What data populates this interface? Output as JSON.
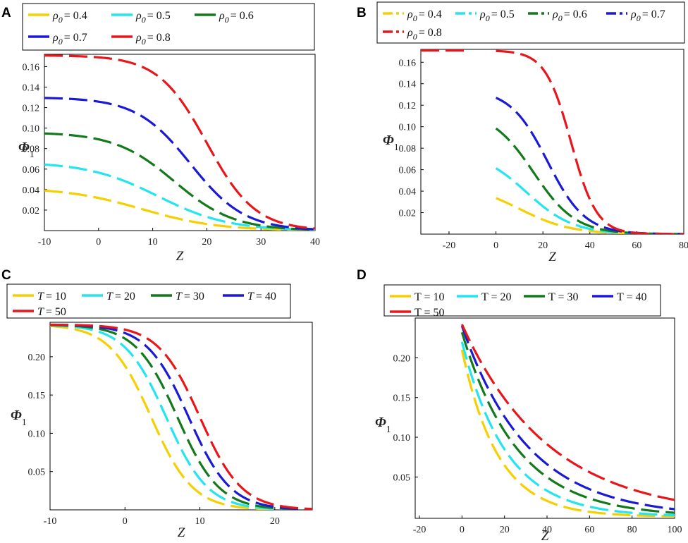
{
  "figure": {
    "panels": [
      {
        "letter": "A",
        "var_symbol": "ρ",
        "var_sub": "0",
        "value_format": "wide",
        "ylabel": "Φ",
        "ylabel_sub": "1",
        "xlabel": "Z"
      },
      {
        "letter": "B",
        "var_symbol": "ρ",
        "var_sub": "0",
        "value_format": "wide",
        "ylabel": "Φ",
        "ylabel_sub": "1",
        "xlabel": "Z"
      },
      {
        "letter": "C",
        "var_symbol": "T",
        "var_sub": "",
        "value_format": "italic",
        "ylabel": "Φ",
        "ylabel_sub": "1",
        "xlabel": "Z"
      },
      {
        "letter": "D",
        "var_symbol": "T",
        "var_sub": "",
        "value_format": "plain",
        "ylabel": "Φ",
        "ylabel_sub": "1",
        "xlabel": "Z"
      }
    ]
  },
  "colors": {
    "yellow": "#f5d000",
    "cyan": "#22e5f0",
    "green": "#137a1b",
    "blue": "#1a1ad6",
    "red": "#e8161a"
  },
  "chart_data": [
    {
      "id": "A",
      "type": "line",
      "title": "",
      "xlabel": "Z",
      "ylabel": "Φ1",
      "xlim": [
        -10,
        40
      ],
      "ylim": [
        0,
        0.172
      ],
      "xticks": [
        "-10",
        "0",
        "10",
        "20",
        "30",
        "40"
      ],
      "yticks": [
        "0.02",
        "0.04",
        "0.06",
        "0.08",
        "0.10",
        "0.12",
        "0.14",
        "0.16"
      ],
      "legend_placement": "top",
      "series": [
        {
          "name": "ρ0 = 0.4",
          "legend": "= 0.4",
          "color": "yellow",
          "amp": 0.042,
          "center": 8,
          "width": 7,
          "xstart": -10,
          "xend": 40
        },
        {
          "name": "ρ0 = 0.5",
          "legend": "= 0.5",
          "color": "cyan",
          "amp": 0.067,
          "center": 11,
          "width": 6.5,
          "xstart": -10,
          "xend": 40
        },
        {
          "name": "ρ0 = 0.6",
          "legend": "= 0.6",
          "color": "green",
          "amp": 0.096,
          "center": 14,
          "width": 5.5,
          "xstart": -10,
          "xend": 40
        },
        {
          "name": "ρ0 = 0.7",
          "legend": "=  0.7",
          "color": "blue",
          "amp": 0.13,
          "center": 17,
          "width": 5,
          "xstart": -10,
          "xend": 40
        },
        {
          "name": "ρ0 = 0.8",
          "legend": "= 0.8",
          "color": "red",
          "amp": 0.171,
          "center": 20,
          "width": 4.5,
          "xstart": -10,
          "xend": 40
        }
      ]
    },
    {
      "id": "B",
      "type": "line",
      "title": "",
      "xlabel": "Z",
      "ylabel": "Φ1",
      "xlim": [
        -32,
        80
      ],
      "ylim": [
        0,
        0.172
      ],
      "xticks": [
        "-20",
        "0",
        "20",
        "40",
        "60",
        "80"
      ],
      "yticks": [
        "0.02",
        "0.04",
        "0.06",
        "0.08",
        "0.10",
        "0.12",
        "0.14",
        "0.16"
      ],
      "legend_placement": "top",
      "series": [
        {
          "name": "ρ0 = 0.4",
          "legend": "= 0.4",
          "color": "yellow",
          "amp": 0.047,
          "center": 10,
          "width": 11,
          "xstart": 0,
          "xend": 80
        },
        {
          "name": "ρ0 = 0.5",
          "legend": "= 0.5",
          "color": "cyan",
          "amp": 0.078,
          "center": 13,
          "width": 10,
          "xstart": 0,
          "xend": 80
        },
        {
          "name": "ρ0 = 0.6",
          "legend": "= 0.6",
          "color": "green",
          "amp": 0.115,
          "center": 16,
          "width": 9,
          "xstart": 0,
          "xend": 80
        },
        {
          "name": "ρ0 = 0.7",
          "legend": "= 0.7",
          "color": "blue",
          "amp": 0.135,
          "center": 22,
          "width": 8,
          "xstart": 0,
          "xend": 80
        },
        {
          "name": "ρ0 = 0.8",
          "legend": "= 0.8",
          "color": "red",
          "amp": 0.171,
          "center": 32,
          "width": 5.5,
          "xstart": 0,
          "xend": 80,
          "pre_segment": [
            -32,
            -12
          ]
        }
      ]
    },
    {
      "id": "C",
      "type": "line",
      "title": "",
      "xlabel": "Z",
      "ylabel": "Φ1",
      "xlim": [
        -10,
        25
      ],
      "ylim": [
        0,
        0.245
      ],
      "xticks": [
        "-10",
        "0",
        "10",
        "20"
      ],
      "yticks": [
        "0.05",
        "0.10",
        "0.15",
        "0.20"
      ],
      "legend_placement": "top",
      "series": [
        {
          "name": "T = 10",
          "legend": "= 10",
          "color": "yellow",
          "amp": 0.242,
          "center": 3.5,
          "width": 2.8,
          "xstart": -10,
          "xend": 25
        },
        {
          "name": "T = 20",
          "legend": "= 20",
          "color": "cyan",
          "amp": 0.242,
          "center": 5.5,
          "width": 2.8,
          "xstart": -10,
          "xend": 25
        },
        {
          "name": "T = 30",
          "legend": "= 30",
          "color": "green",
          "amp": 0.242,
          "center": 7,
          "width": 2.8,
          "xstart": -10,
          "xend": 25
        },
        {
          "name": "T = 40",
          "legend": "= 40",
          "color": "blue",
          "amp": 0.242,
          "center": 8.5,
          "width": 2.8,
          "xstart": -10,
          "xend": 25
        },
        {
          "name": "T = 50",
          "legend": "= 50",
          "color": "red",
          "amp": 0.242,
          "center": 10,
          "width": 2.8,
          "xstart": -10,
          "xend": 25
        }
      ]
    },
    {
      "id": "D",
      "type": "line",
      "title": "",
      "xlabel": "Z",
      "ylabel": "Φ1",
      "xlim": [
        -22,
        100
      ],
      "ylim": [
        -0.002,
        0.25
      ],
      "xticks": [
        "-20",
        "0",
        "20",
        "40",
        "60",
        "80",
        "100"
      ],
      "yticks": [
        "0.05",
        "0.10",
        "0.15",
        "0.20"
      ],
      "legend_placement": "top",
      "series": [
        {
          "name": "T = 10",
          "legend": "T = 10",
          "color": "yellow",
          "amp": 0.21,
          "decay": 17,
          "xstart": 0,
          "xend": 100
        },
        {
          "name": "T = 20",
          "legend": "T = 20",
          "color": "cyan",
          "amp": 0.22,
          "decay": 21,
          "xstart": 0,
          "xend": 100
        },
        {
          "name": "T = 30",
          "legend": "T = 30",
          "color": "green",
          "amp": 0.232,
          "decay": 26,
          "xstart": 0,
          "xend": 100
        },
        {
          "name": "T = 40",
          "legend": "T = 40",
          "color": "blue",
          "amp": 0.24,
          "decay": 31,
          "xstart": 0,
          "xend": 100
        },
        {
          "name": "T = 50",
          "legend": "T = 50",
          "color": "red",
          "amp": 0.242,
          "decay": 41,
          "xstart": 0,
          "xend": 100
        }
      ]
    }
  ]
}
